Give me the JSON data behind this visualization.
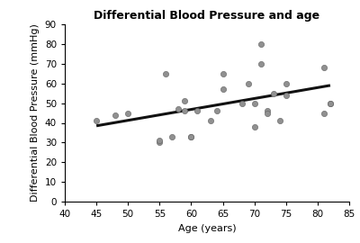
{
  "title": "Differential Blood Pressure and age",
  "xlabel": "Age (years)",
  "ylabel": "Differential Blood Pressure (mmHg)",
  "xlim": [
    40,
    85
  ],
  "ylim": [
    0,
    90
  ],
  "xticks": [
    40,
    45,
    50,
    55,
    60,
    65,
    70,
    75,
    80,
    85
  ],
  "yticks": [
    0,
    10,
    20,
    30,
    40,
    50,
    60,
    70,
    80,
    90
  ],
  "scatter_x": [
    45,
    48,
    50,
    55,
    55,
    56,
    57,
    58,
    59,
    59,
    60,
    60,
    61,
    63,
    64,
    65,
    65,
    68,
    69,
    70,
    70,
    71,
    71,
    72,
    72,
    73,
    74,
    75,
    75,
    81,
    81,
    82,
    82
  ],
  "scatter_y": [
    41,
    44,
    45,
    30,
    31,
    65,
    33,
    47,
    46,
    51,
    33,
    33,
    46,
    41,
    46,
    65,
    57,
    50,
    60,
    38,
    50,
    80,
    70,
    46,
    45,
    55,
    41,
    54,
    60,
    68,
    45,
    50,
    50
  ],
  "trend_x": [
    45,
    82
  ],
  "trend_y": [
    38.5,
    59.0
  ],
  "marker_color": "#909090",
  "marker_edge_color": "#606060",
  "marker_size": 4.5,
  "line_color": "#111111",
  "line_width": 2.2,
  "title_fontsize": 9,
  "label_fontsize": 8,
  "tick_fontsize": 7.5,
  "background_color": "#ffffff"
}
